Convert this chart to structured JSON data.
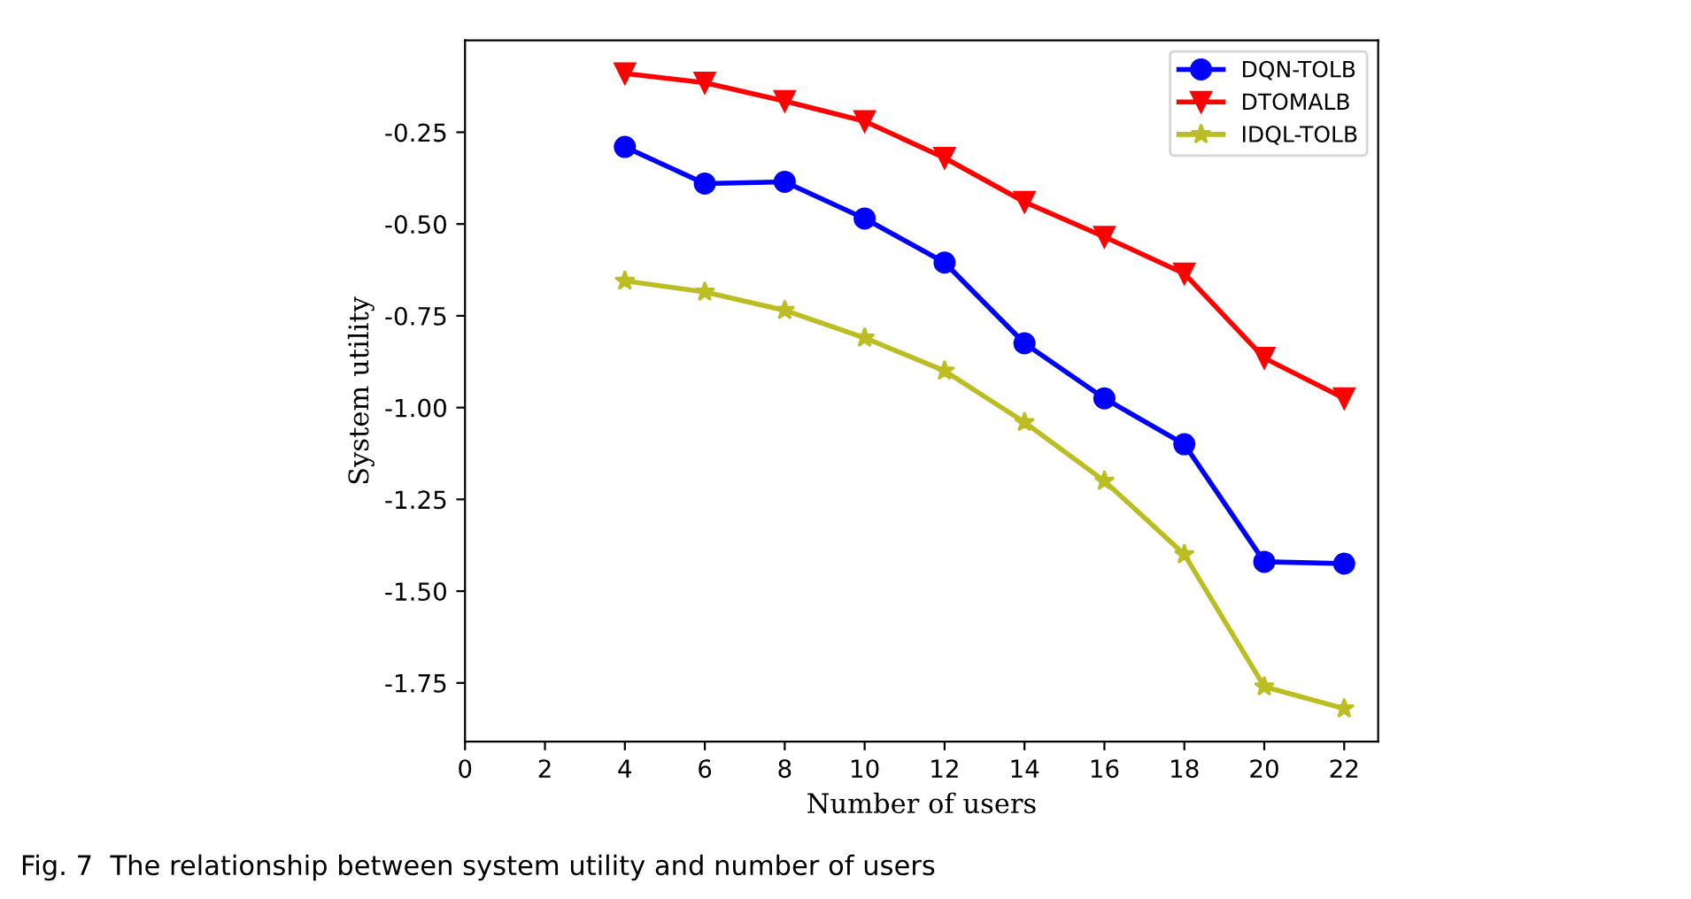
{
  "chart_data": {
    "type": "line",
    "xlabel": "Number of users",
    "ylabel": "System utility",
    "annotations": [
      "Fig. 7  The relationship between system utility and number of users"
    ],
    "x": [
      4,
      6,
      8,
      10,
      12,
      14,
      16,
      18,
      20,
      22
    ],
    "series": [
      {
        "name": "DQN-TOLB",
        "color": "#0000ff",
        "marker": "circle",
        "values": [
          -0.29,
          -0.39,
          -0.385,
          -0.485,
          -0.605,
          -0.825,
          -0.975,
          -1.1,
          -1.42,
          -1.425
        ]
      },
      {
        "name": "DTOMALB",
        "color": "#ff0000",
        "marker": "triangle",
        "values": [
          -0.09,
          -0.115,
          -0.165,
          -0.22,
          -0.32,
          -0.44,
          -0.535,
          -0.635,
          -0.865,
          -0.975
        ]
      },
      {
        "name": "IDQL-TOLB",
        "color": "#bcbd22",
        "marker": "star",
        "values": [
          -0.655,
          -0.685,
          -0.735,
          -0.81,
          -0.9,
          -1.04,
          -1.2,
          -1.4,
          -1.76,
          -1.82
        ]
      }
    ],
    "xlim": [
      0,
      22.85
    ],
    "xticks": [
      0,
      2,
      4,
      6,
      8,
      10,
      12,
      14,
      16,
      18,
      20,
      22
    ],
    "ylim": [
      -1.91,
      0.0
    ],
    "yticks": [
      -0.25,
      {
        "value": -0.5,
        "label": "-0.50"
      },
      -0.75,
      {
        "value": -1.0,
        "label": "-1.00"
      },
      -1.25,
      {
        "value": -1.5,
        "label": "-1.50"
      },
      -1.75
    ],
    "grid": false,
    "legend": "top right",
    "line_style": "solid"
  }
}
